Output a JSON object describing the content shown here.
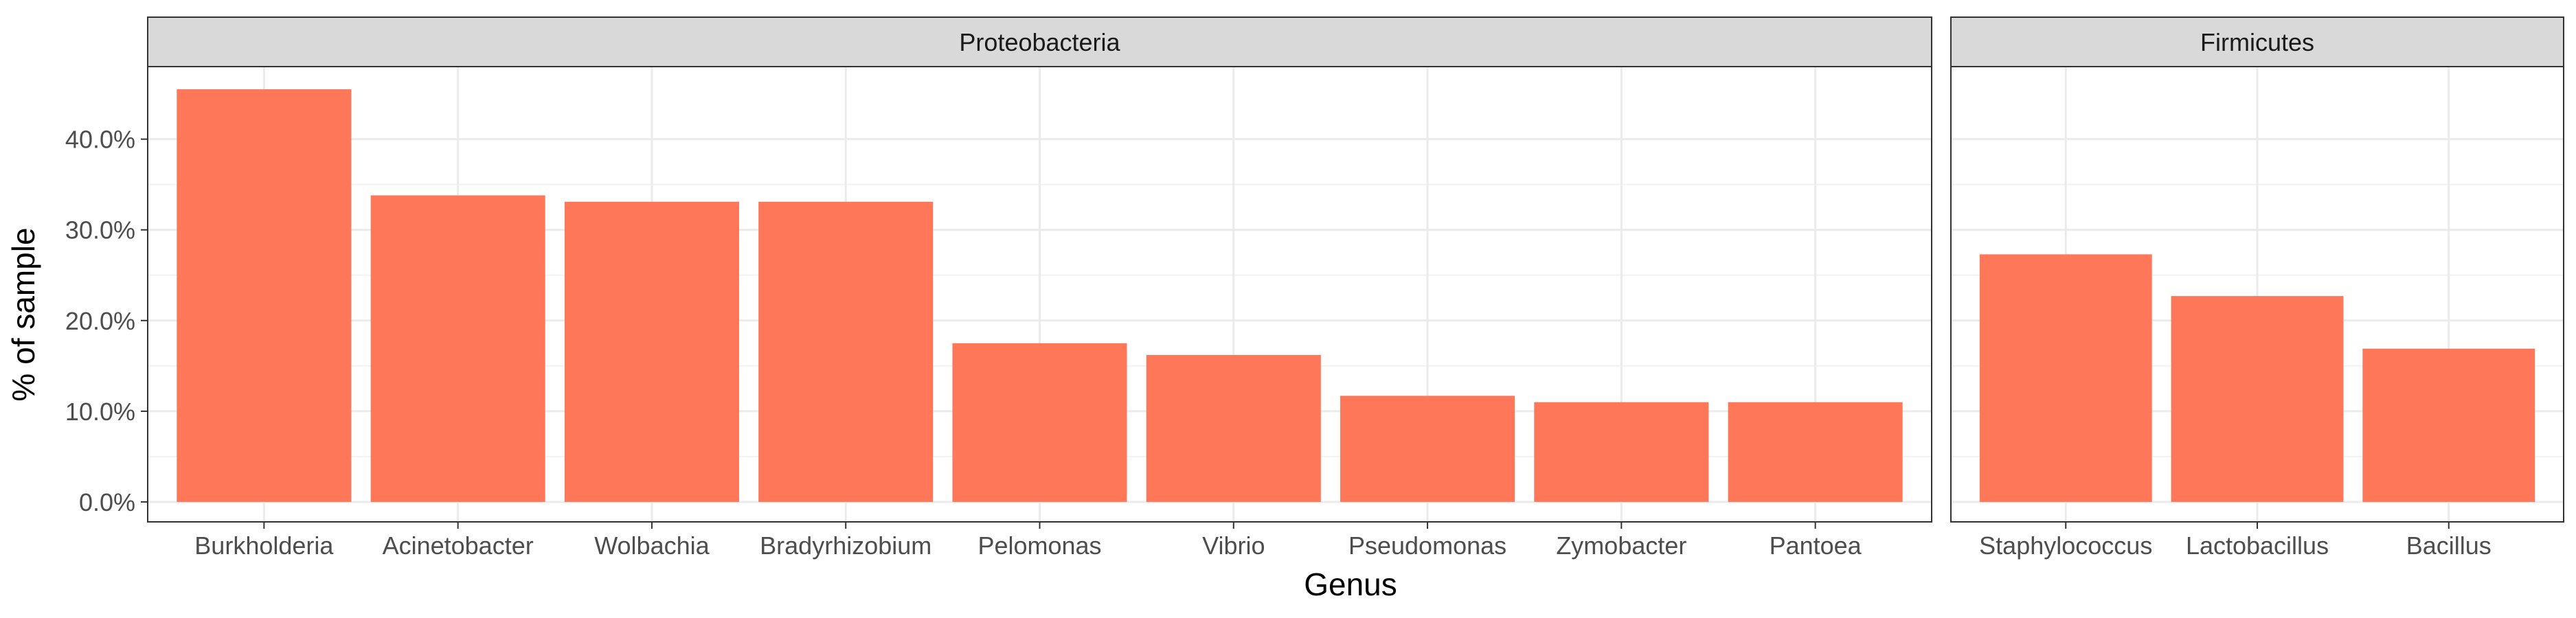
{
  "chart_data": {
    "type": "bar",
    "xlabel": "Genus",
    "ylabel": "% of sample",
    "ylim": [
      -0.022,
      0.48
    ],
    "y_ticks": [
      {
        "value": 0.0,
        "label": "0.0%"
      },
      {
        "value": 0.1,
        "label": "10.0%"
      },
      {
        "value": 0.2,
        "label": "20.0%"
      },
      {
        "value": 0.3,
        "label": "30.0%"
      },
      {
        "value": 0.4,
        "label": "40.0%"
      }
    ],
    "grid": true,
    "bar_color": "#FF7759",
    "panels": [
      {
        "name": "Proteobacteria",
        "categories": [
          "Burkholderia",
          "Acinetobacter",
          "Wolbachia",
          "Bradyrhizobium",
          "Pelomonas",
          "Vibrio",
          "Pseudomonas",
          "Zymobacter",
          "Pantoea"
        ],
        "values": [
          0.455,
          0.338,
          0.331,
          0.331,
          0.175,
          0.162,
          0.117,
          0.11,
          0.11
        ]
      },
      {
        "name": "Firmicutes",
        "categories": [
          "Staphylococcus",
          "Lactobacillus",
          "Bacillus"
        ],
        "values": [
          0.273,
          0.227,
          0.169
        ]
      }
    ]
  }
}
